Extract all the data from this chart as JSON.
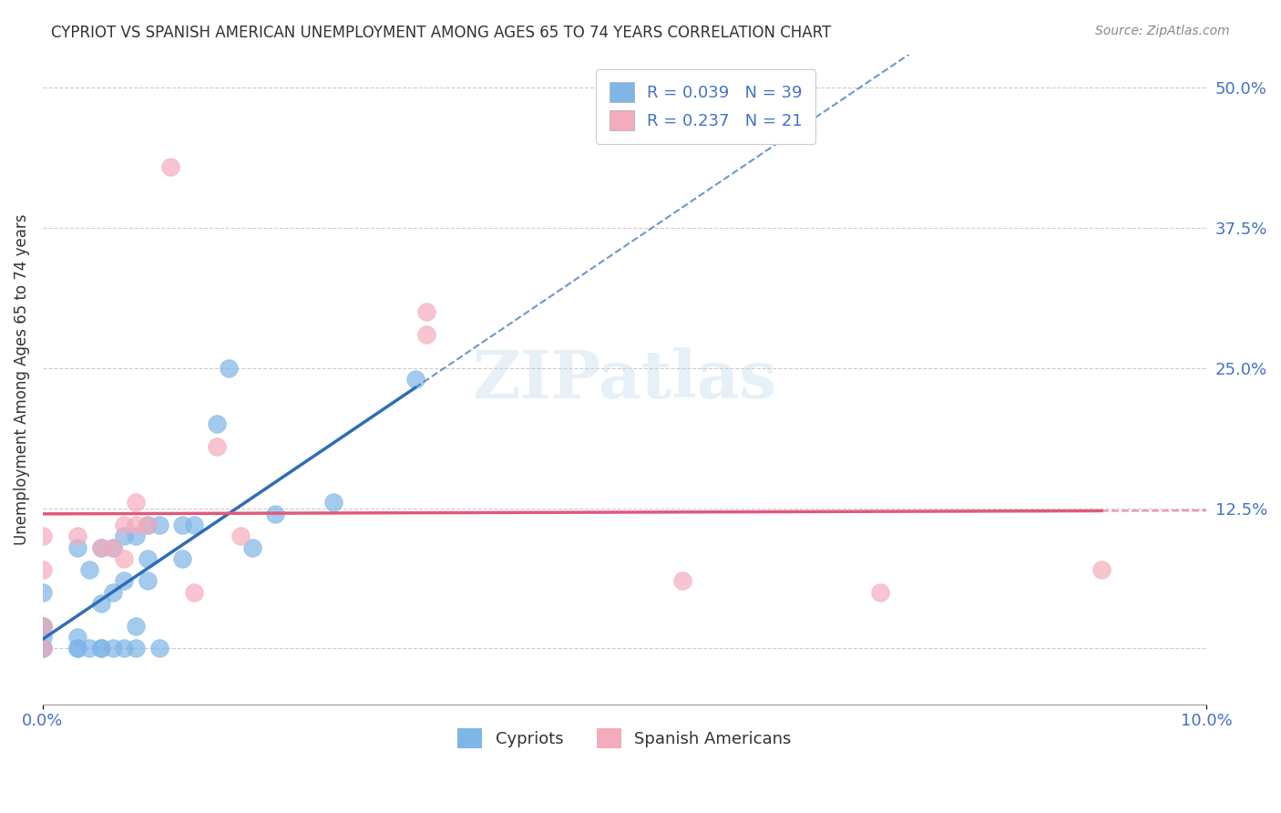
{
  "title": "CYPRIOT VS SPANISH AMERICAN UNEMPLOYMENT AMONG AGES 65 TO 74 YEARS CORRELATION CHART",
  "source": "Source: ZipAtlas.com",
  "ylabel_label": "Unemployment Among Ages 65 to 74 years",
  "xmin": 0.0,
  "xmax": 0.1,
  "ymin": -0.05,
  "ymax": 0.53,
  "cypriot_color": "#7EB6E8",
  "cypriot_line_color": "#2E6DB4",
  "spanish_color": "#F4ABBB",
  "spanish_line_color": "#E05A7A",
  "R_cypriot": 0.039,
  "N_cypriot": 39,
  "R_spanish": 0.237,
  "N_spanish": 21,
  "cypriot_x": [
    0.0,
    0.0,
    0.0,
    0.0,
    0.0,
    0.0,
    0.003,
    0.003,
    0.003,
    0.003,
    0.004,
    0.004,
    0.005,
    0.005,
    0.005,
    0.005,
    0.006,
    0.006,
    0.006,
    0.007,
    0.007,
    0.007,
    0.008,
    0.008,
    0.008,
    0.009,
    0.009,
    0.009,
    0.01,
    0.01,
    0.012,
    0.012,
    0.013,
    0.015,
    0.016,
    0.018,
    0.02,
    0.025,
    0.032
  ],
  "cypriot_y": [
    0.0,
    0.0,
    0.01,
    0.02,
    0.02,
    0.05,
    0.0,
    0.0,
    0.01,
    0.09,
    0.0,
    0.07,
    0.0,
    0.0,
    0.04,
    0.09,
    0.0,
    0.05,
    0.09,
    0.0,
    0.06,
    0.1,
    0.0,
    0.02,
    0.1,
    0.06,
    0.08,
    0.11,
    0.0,
    0.11,
    0.08,
    0.11,
    0.11,
    0.2,
    0.25,
    0.09,
    0.12,
    0.13,
    0.24
  ],
  "spanish_x": [
    0.0,
    0.0,
    0.0,
    0.0,
    0.003,
    0.005,
    0.006,
    0.007,
    0.007,
    0.008,
    0.008,
    0.009,
    0.011,
    0.013,
    0.015,
    0.017,
    0.033,
    0.033,
    0.055,
    0.072,
    0.091
  ],
  "spanish_y": [
    0.0,
    0.02,
    0.07,
    0.1,
    0.1,
    0.09,
    0.09,
    0.08,
    0.11,
    0.11,
    0.13,
    0.11,
    0.43,
    0.05,
    0.18,
    0.1,
    0.28,
    0.3,
    0.06,
    0.05,
    0.07
  ],
  "watermark": "ZIPatlas",
  "bottom_legend_labels": [
    "Cypriots",
    "Spanish Americans"
  ],
  "grid_color": "#cccccc",
  "background_color": "#ffffff"
}
